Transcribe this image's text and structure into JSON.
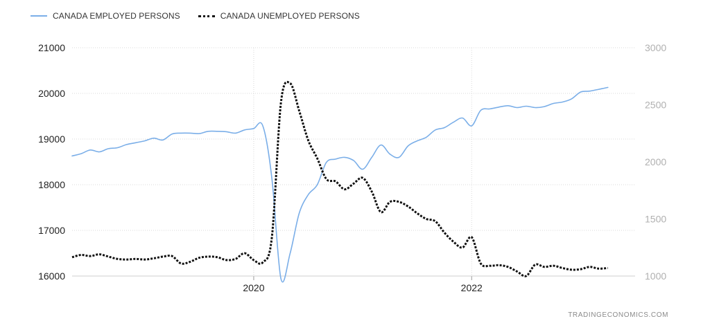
{
  "legend": {
    "employed_label": "CANADA EMPLOYED PERSONS",
    "unemployed_label": "CANADA UNEMPLOYED PERSONS"
  },
  "watermark": "TRADINGECONOMICS.COM",
  "colors": {
    "employed": "#7aaee8",
    "unemployed": "#111111",
    "grid": "#d8d8d8",
    "left_axis_text": "#222222",
    "right_axis_text": "#b0b0b0"
  },
  "chart_data": {
    "type": "line",
    "x_range": [
      "2018-05",
      "2023-07"
    ],
    "x_ticks": [
      {
        "x": "2020-01",
        "label": "2020"
      },
      {
        "x": "2022-01",
        "label": "2022"
      }
    ],
    "y_left": {
      "range": [
        16000,
        21000
      ],
      "ticks": [
        16000,
        17000,
        18000,
        19000,
        20000,
        21000
      ]
    },
    "y_right": {
      "range": [
        1000,
        3000
      ],
      "ticks": [
        1000,
        1500,
        2000,
        2500,
        3000
      ]
    },
    "grid": true,
    "legend_position": "top-left",
    "series": [
      {
        "name": "CANADA EMPLOYED PERSONS",
        "axis": "left",
        "style": "solid",
        "points": [
          [
            "2018-05",
            18630
          ],
          [
            "2018-06",
            18680
          ],
          [
            "2018-07",
            18760
          ],
          [
            "2018-08",
            18720
          ],
          [
            "2018-09",
            18790
          ],
          [
            "2018-10",
            18810
          ],
          [
            "2018-11",
            18880
          ],
          [
            "2018-12",
            18920
          ],
          [
            "2019-01",
            18960
          ],
          [
            "2019-02",
            19020
          ],
          [
            "2019-03",
            18980
          ],
          [
            "2019-04",
            19110
          ],
          [
            "2019-05",
            19130
          ],
          [
            "2019-06",
            19130
          ],
          [
            "2019-07",
            19120
          ],
          [
            "2019-08",
            19170
          ],
          [
            "2019-09",
            19170
          ],
          [
            "2019-10",
            19160
          ],
          [
            "2019-11",
            19130
          ],
          [
            "2019-12",
            19200
          ],
          [
            "2020-01",
            19230
          ],
          [
            "2020-02",
            19290
          ],
          [
            "2020-03",
            18140
          ],
          [
            "2020-04",
            15940
          ],
          [
            "2020-05",
            16490
          ],
          [
            "2020-06",
            17370
          ],
          [
            "2020-07",
            17780
          ],
          [
            "2020-08",
            18000
          ],
          [
            "2020-09",
            18490
          ],
          [
            "2020-10",
            18560
          ],
          [
            "2020-11",
            18600
          ],
          [
            "2020-12",
            18530
          ],
          [
            "2021-01",
            18340
          ],
          [
            "2021-02",
            18600
          ],
          [
            "2021-03",
            18870
          ],
          [
            "2021-04",
            18670
          ],
          [
            "2021-05",
            18600
          ],
          [
            "2021-06",
            18850
          ],
          [
            "2021-07",
            18960
          ],
          [
            "2021-08",
            19040
          ],
          [
            "2021-09",
            19200
          ],
          [
            "2021-10",
            19250
          ],
          [
            "2021-11",
            19370
          ],
          [
            "2021-12",
            19460
          ],
          [
            "2022-01",
            19290
          ],
          [
            "2022-02",
            19630
          ],
          [
            "2022-03",
            19660
          ],
          [
            "2022-04",
            19700
          ],
          [
            "2022-05",
            19730
          ],
          [
            "2022-06",
            19690
          ],
          [
            "2022-07",
            19720
          ],
          [
            "2022-08",
            19690
          ],
          [
            "2022-09",
            19710
          ],
          [
            "2022-10",
            19780
          ],
          [
            "2022-11",
            19810
          ],
          [
            "2022-12",
            19880
          ],
          [
            "2023-01",
            20030
          ],
          [
            "2023-02",
            20050
          ],
          [
            "2023-03",
            20090
          ],
          [
            "2023-04",
            20130
          ]
        ]
      },
      {
        "name": "CANADA UNEMPLOYED PERSONS",
        "axis": "right",
        "style": "dotted",
        "points": [
          [
            "2018-05",
            1165
          ],
          [
            "2018-06",
            1185
          ],
          [
            "2018-07",
            1175
          ],
          [
            "2018-08",
            1190
          ],
          [
            "2018-09",
            1170
          ],
          [
            "2018-10",
            1150
          ],
          [
            "2018-11",
            1145
          ],
          [
            "2018-12",
            1150
          ],
          [
            "2019-01",
            1145
          ],
          [
            "2019-02",
            1155
          ],
          [
            "2019-03",
            1170
          ],
          [
            "2019-04",
            1175
          ],
          [
            "2019-05",
            1110
          ],
          [
            "2019-06",
            1125
          ],
          [
            "2019-07",
            1160
          ],
          [
            "2019-08",
            1170
          ],
          [
            "2019-09",
            1165
          ],
          [
            "2019-10",
            1140
          ],
          [
            "2019-11",
            1150
          ],
          [
            "2019-12",
            1200
          ],
          [
            "2020-01",
            1140
          ],
          [
            "2020-02",
            1120
          ],
          [
            "2020-03",
            1340
          ],
          [
            "2020-04",
            2520
          ],
          [
            "2020-05",
            2690
          ],
          [
            "2020-06",
            2450
          ],
          [
            "2020-07",
            2190
          ],
          [
            "2020-08",
            2030
          ],
          [
            "2020-09",
            1850
          ],
          [
            "2020-10",
            1830
          ],
          [
            "2020-11",
            1760
          ],
          [
            "2020-12",
            1810
          ],
          [
            "2021-01",
            1860
          ],
          [
            "2021-02",
            1740
          ],
          [
            "2021-03",
            1560
          ],
          [
            "2021-04",
            1650
          ],
          [
            "2021-05",
            1650
          ],
          [
            "2021-06",
            1610
          ],
          [
            "2021-07",
            1550
          ],
          [
            "2021-08",
            1500
          ],
          [
            "2021-09",
            1480
          ],
          [
            "2021-10",
            1380
          ],
          [
            "2021-11",
            1300
          ],
          [
            "2021-12",
            1250
          ],
          [
            "2022-01",
            1340
          ],
          [
            "2022-02",
            1110
          ],
          [
            "2022-03",
            1090
          ],
          [
            "2022-04",
            1095
          ],
          [
            "2022-05",
            1080
          ],
          [
            "2022-06",
            1040
          ],
          [
            "2022-07",
            1000
          ],
          [
            "2022-08",
            1100
          ],
          [
            "2022-09",
            1080
          ],
          [
            "2022-10",
            1090
          ],
          [
            "2022-11",
            1070
          ],
          [
            "2022-12",
            1055
          ],
          [
            "2023-01",
            1060
          ],
          [
            "2023-02",
            1080
          ],
          [
            "2023-03",
            1065
          ],
          [
            "2023-04",
            1070
          ]
        ]
      }
    ]
  }
}
